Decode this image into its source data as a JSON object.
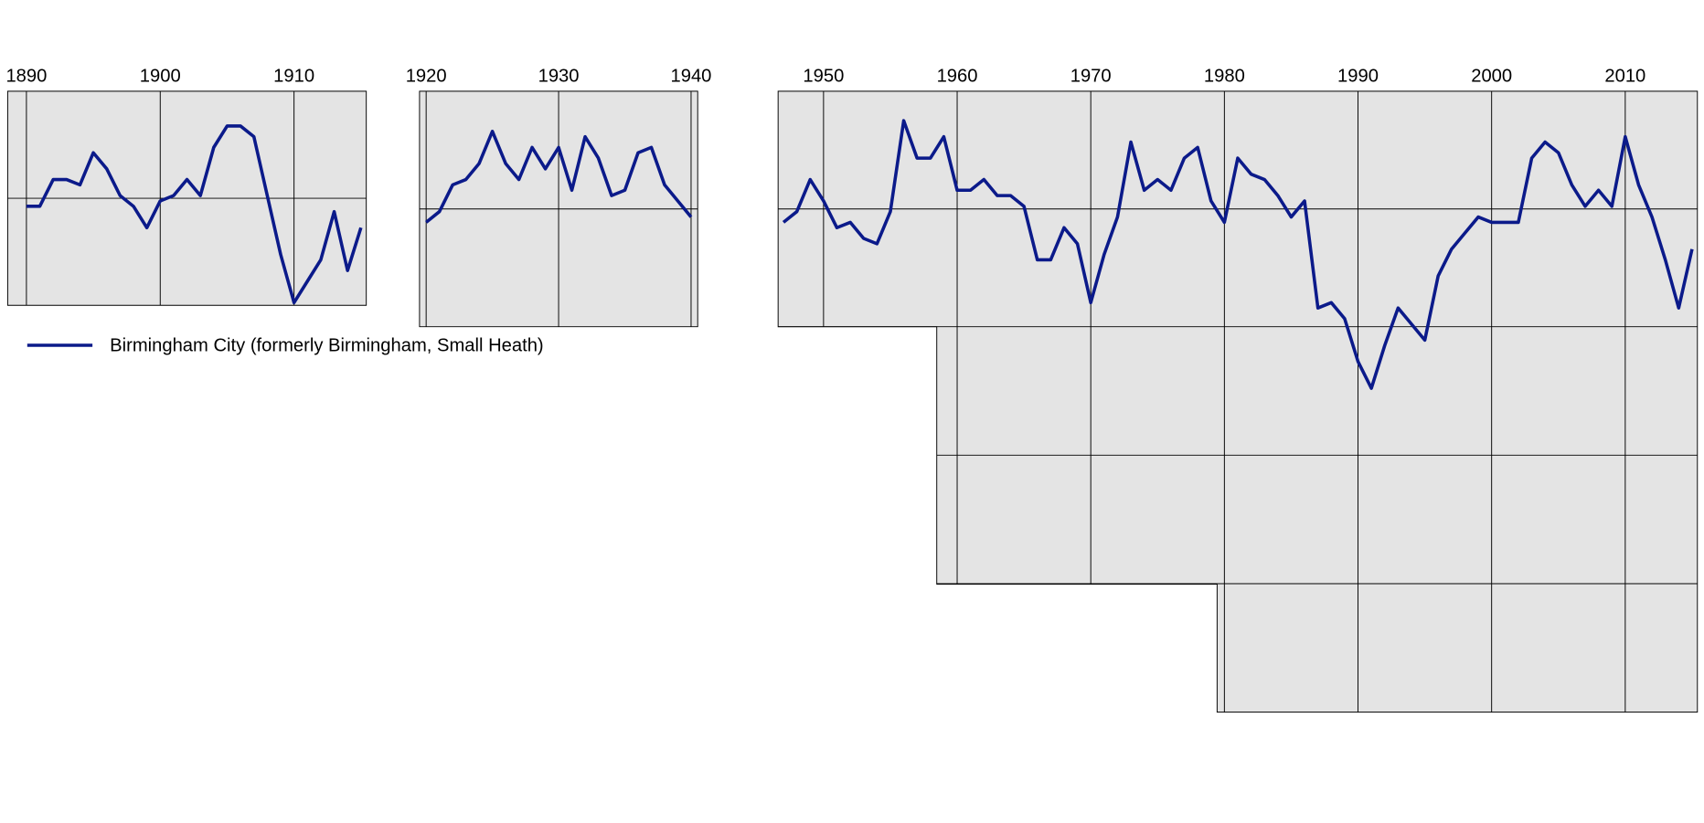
{
  "chart_data": [
    {
      "type": "line",
      "x": [
        1890,
        1891,
        1892,
        1893,
        1894,
        1895,
        1896,
        1897,
        1898,
        1899,
        1900,
        1901,
        1902,
        1903,
        1904,
        1905,
        1906,
        1907,
        1908,
        1909,
        1910,
        1911,
        1912,
        1913,
        1914,
        1915
      ],
      "series": [
        {
          "name": "Birmingham City (formerly Birmingham, Small Heath)",
          "color": "#0b1a8a",
          "values": [
            22,
            22,
            17,
            17,
            18,
            12,
            15,
            20,
            22,
            26,
            21,
            20,
            17,
            20,
            11,
            7,
            7,
            9,
            20,
            31,
            40,
            36,
            32,
            23,
            34,
            26
          ]
        }
      ],
      "xlim": [
        1888.6,
        1915.4
      ],
      "xticks": [
        1890,
        1900,
        1910
      ],
      "ylim": [
        0.5,
        40.5
      ],
      "yticks": [
        20.5
      ],
      "y_reversed": true,
      "grid": true
    },
    {
      "type": "line",
      "x": [
        1920,
        1921,
        1922,
        1923,
        1924,
        1925,
        1926,
        1927,
        1928,
        1929,
        1930,
        1931,
        1932,
        1933,
        1934,
        1935,
        1936,
        1937,
        1938,
        1939,
        1940
      ],
      "series": [
        {
          "color": "#0b1a8a",
          "values": [
            25,
            23,
            18,
            17,
            14,
            8,
            14,
            17,
            11,
            15,
            11,
            19,
            9,
            13,
            20,
            19,
            12,
            11,
            18,
            21,
            24
          ]
        }
      ],
      "xlim": [
        1919.5,
        1940.5
      ],
      "xticks": [
        1920,
        1930,
        1940
      ],
      "ylim": [
        0.5,
        44.5
      ],
      "yticks": [
        22.5
      ],
      "y_reversed": true,
      "grid": true
    },
    {
      "type": "line",
      "x": [
        1947,
        1948,
        1949,
        1950,
        1951,
        1952,
        1953,
        1954,
        1955,
        1956,
        1957,
        1958,
        1959,
        1960,
        1961,
        1962,
        1963,
        1964,
        1965,
        1966,
        1967,
        1968,
        1969,
        1970,
        1971,
        1972,
        1973,
        1974,
        1975,
        1976,
        1977,
        1978,
        1979,
        1980,
        1981,
        1982,
        1983,
        1984,
        1985,
        1986,
        1987,
        1988,
        1989,
        1990,
        1991,
        1992,
        1993,
        1994,
        1995,
        1996,
        1997,
        1998,
        1999,
        2000,
        2001,
        2002,
        2003,
        2004,
        2005,
        2006,
        2007,
        2008,
        2009,
        2010,
        2011,
        2012,
        2013,
        2014,
        2015
      ],
      "series": [
        {
          "color": "#0b1a8a",
          "values": [
            25,
            23,
            17,
            21,
            26,
            25,
            28,
            29,
            23,
            6,
            13,
            13,
            9,
            19,
            19,
            17,
            20,
            20,
            22,
            32,
            32,
            26,
            29,
            40,
            31,
            24,
            10,
            19,
            17,
            19,
            13,
            11,
            21,
            25,
            13,
            16,
            17,
            20,
            24,
            21,
            41,
            40,
            43,
            51,
            56,
            48,
            41,
            44,
            47,
            35,
            30,
            27,
            24,
            25,
            25,
            25,
            13,
            10,
            12,
            18,
            22,
            19,
            22,
            9,
            18,
            24,
            32,
            41,
            30
          ]
        }
      ],
      "xlim": [
        1946.6,
        2015.4
      ],
      "xticks": [
        1950,
        1960,
        1970,
        1980,
        1990,
        2000,
        2010
      ],
      "ylim": [
        0.5,
        116.5
      ],
      "yticks": [
        22.5,
        44.5,
        68.5,
        92.5
      ],
      "y_reversed": true,
      "grid": true
    }
  ]
}
